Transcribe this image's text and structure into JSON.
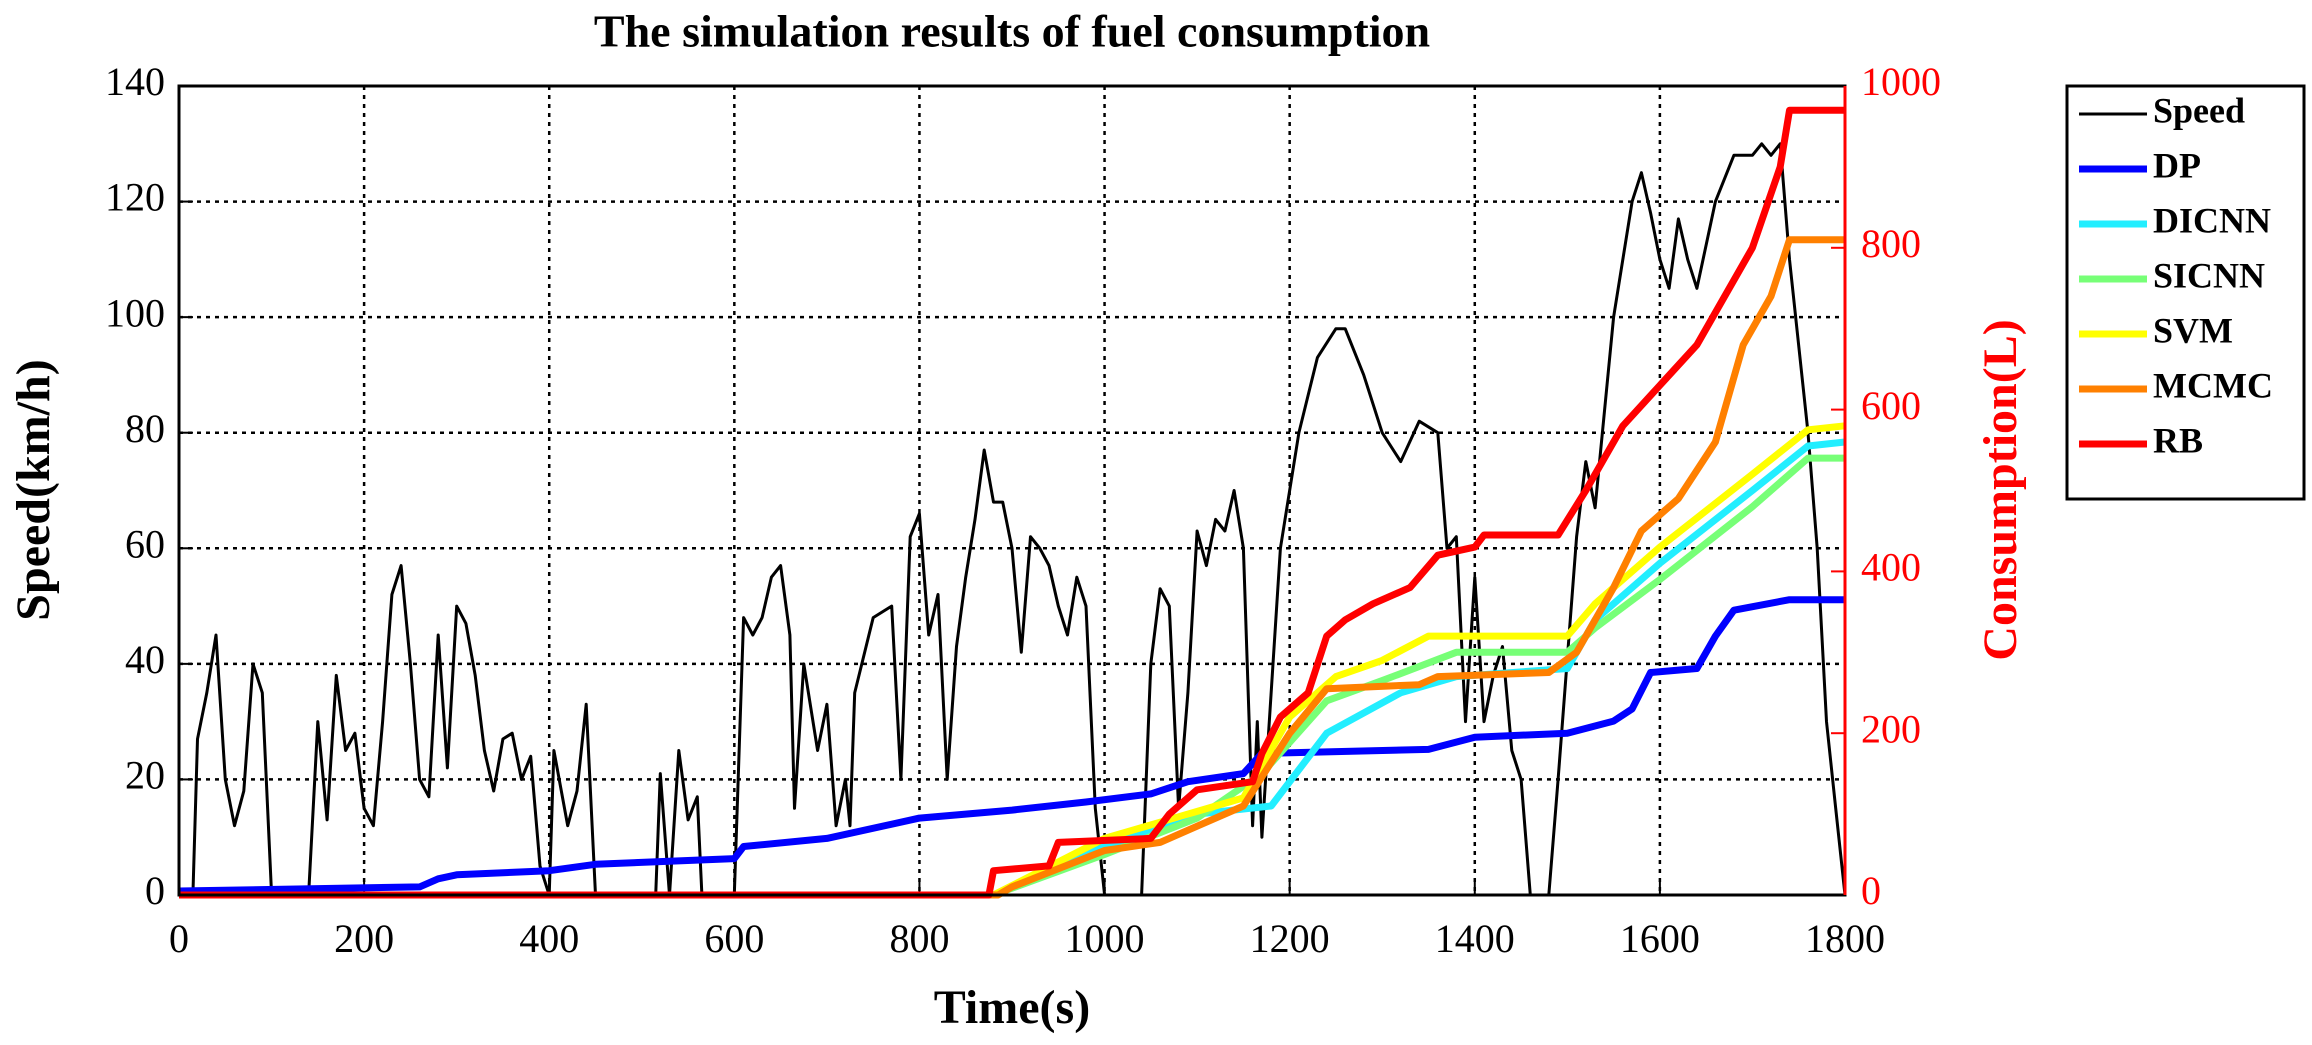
{
  "chart_data": {
    "type": "line",
    "title": "The simulation results of fuel consumption",
    "xlabel": "Time(s)",
    "ylabel": "Speed(km/h)",
    "y2label": "Consumption(L)",
    "y2color": "#ff0000",
    "xlim": [
      0,
      1800
    ],
    "xticks": [
      0,
      200,
      400,
      600,
      800,
      1000,
      1200,
      1400,
      1600,
      1800
    ],
    "ylim": [
      0,
      140
    ],
    "yticks": [
      0,
      20,
      40,
      60,
      80,
      100,
      120,
      140
    ],
    "y2lim": [
      0,
      1000
    ],
    "y2ticks": [
      0,
      200,
      400,
      600,
      800,
      1000
    ],
    "grid": true,
    "legend": "outside-right",
    "series": [
      {
        "name": "Speed",
        "color": "#000000",
        "width": 3,
        "axis": "y",
        "x": [
          0,
          15,
          20,
          30,
          40,
          50,
          60,
          70,
          80,
          90,
          100,
          140,
          150,
          160,
          170,
          180,
          190,
          200,
          210,
          220,
          230,
          240,
          250,
          260,
          270,
          280,
          290,
          300,
          310,
          320,
          330,
          340,
          350,
          360,
          370,
          380,
          390,
          400,
          405,
          420,
          430,
          440,
          450,
          515,
          520,
          530,
          540,
          550,
          560,
          565,
          600,
          610,
          620,
          630,
          640,
          650,
          660,
          665,
          675,
          690,
          700,
          710,
          720,
          725,
          730,
          750,
          770,
          780,
          790,
          800,
          810,
          820,
          830,
          840,
          850,
          860,
          870,
          880,
          890,
          900,
          910,
          920,
          930,
          940,
          950,
          960,
          970,
          980,
          990,
          1000,
          1040,
          1050,
          1060,
          1070,
          1080,
          1090,
          1100,
          1110,
          1120,
          1130,
          1140,
          1150,
          1160,
          1165,
          1170,
          1190,
          1210,
          1230,
          1250,
          1260,
          1280,
          1300,
          1320,
          1340,
          1360,
          1370,
          1380,
          1390,
          1400,
          1410,
          1420,
          1430,
          1440,
          1450,
          1460,
          1480,
          1490,
          1510,
          1520,
          1530,
          1550,
          1570,
          1580,
          1590,
          1600,
          1610,
          1620,
          1630,
          1640,
          1660,
          1680,
          1700,
          1710,
          1720,
          1730,
          1740,
          1760,
          1770,
          1780,
          1790,
          1800
        ],
        "values": [
          0,
          0,
          27,
          35,
          45,
          20,
          12,
          18,
          40,
          35,
          0,
          0,
          30,
          13,
          38,
          25,
          28,
          15,
          12,
          30,
          52,
          57,
          40,
          20,
          17,
          45,
          22,
          50,
          47,
          38,
          25,
          18,
          27,
          28,
          20,
          24,
          5,
          0,
          25,
          12,
          18,
          33,
          0,
          0,
          21,
          0,
          25,
          13,
          17,
          0,
          0,
          48,
          45,
          48,
          55,
          57,
          45,
          15,
          40,
          25,
          33,
          12,
          20,
          12,
          35,
          48,
          50,
          20,
          62,
          66,
          45,
          52,
          20,
          43,
          55,
          65,
          77,
          68,
          68,
          60,
          42,
          62,
          60,
          57,
          50,
          45,
          55,
          50,
          15,
          0,
          0,
          40,
          53,
          50,
          15,
          35,
          63,
          57,
          65,
          63,
          70,
          60,
          12,
          30,
          10,
          60,
          80,
          93,
          98,
          98,
          90,
          80,
          75,
          82,
          80,
          60,
          62,
          30,
          55,
          30,
          38,
          43,
          25,
          20,
          0,
          0,
          20,
          62,
          75,
          67,
          100,
          120,
          125,
          118,
          110,
          105,
          117,
          110,
          105,
          120,
          128,
          128,
          130,
          128,
          130,
          110,
          80,
          60,
          30,
          15,
          0
        ]
      },
      {
        "name": "DP",
        "color": "#0000ff",
        "width": 7,
        "axis": "y2",
        "x": [
          0,
          260,
          280,
          300,
          400,
          450,
          600,
          610,
          700,
          800,
          900,
          980,
          1050,
          1090,
          1150,
          1170,
          1350,
          1400,
          1500,
          1550,
          1570,
          1590,
          1640,
          1660,
          1680,
          1740,
          1800
        ],
        "values": [
          5,
          10,
          20,
          25,
          30,
          38,
          45,
          60,
          70,
          95,
          105,
          115,
          125,
          140,
          150,
          175,
          180,
          195,
          200,
          215,
          230,
          275,
          280,
          320,
          352,
          365,
          365
        ]
      },
      {
        "name": "DICNN",
        "color": "#22eeff",
        "width": 7,
        "axis": "y2",
        "x": [
          0,
          880,
          1000,
          1100,
          1180,
          1240,
          1320,
          1380,
          1500,
          1530,
          1600,
          1700,
          1760,
          1800
        ],
        "values": [
          0,
          0,
          60,
          100,
          110,
          200,
          250,
          270,
          280,
          340,
          410,
          500,
          555,
          560
        ]
      },
      {
        "name": "SICNN",
        "color": "#77ff77",
        "width": 7,
        "axis": "y2",
        "x": [
          0,
          880,
          1000,
          1100,
          1170,
          1240,
          1300,
          1380,
          1500,
          1530,
          1600,
          1700,
          1760,
          1800
        ],
        "values": [
          0,
          0,
          50,
          95,
          150,
          240,
          265,
          300,
          300,
          330,
          390,
          480,
          540,
          540
        ]
      },
      {
        "name": "SVM",
        "color": "#ffff00",
        "width": 7,
        "axis": "y2",
        "x": [
          0,
          880,
          1000,
          1060,
          1150,
          1200,
          1250,
          1300,
          1350,
          1500,
          1530,
          1600,
          1700,
          1760,
          1800
        ],
        "values": [
          0,
          0,
          70,
          90,
          120,
          220,
          270,
          290,
          320,
          320,
          360,
          430,
          520,
          575,
          580
        ]
      },
      {
        "name": "MCMC",
        "color": "#ff8000",
        "width": 7,
        "axis": "y2",
        "x": [
          0,
          885,
          900,
          1000,
          1060,
          1100,
          1150,
          1200,
          1240,
          1340,
          1360,
          1480,
          1510,
          1550,
          1580,
          1620,
          1660,
          1690,
          1720,
          1740,
          1800
        ],
        "values": [
          0,
          0,
          10,
          55,
          65,
          85,
          110,
          200,
          255,
          260,
          270,
          275,
          300,
          380,
          450,
          490,
          560,
          680,
          740,
          810,
          810
        ]
      },
      {
        "name": "RB",
        "color": "#ff0000",
        "width": 7,
        "axis": "y2",
        "x": [
          0,
          875,
          880,
          940,
          950,
          1050,
          1070,
          1100,
          1160,
          1170,
          1190,
          1220,
          1240,
          1260,
          1290,
          1330,
          1360,
          1400,
          1410,
          1490,
          1520,
          1560,
          1600,
          1640,
          1700,
          1730,
          1740,
          1800
        ],
        "values": [
          0,
          0,
          30,
          36,
          65,
          70,
          100,
          130,
          140,
          175,
          220,
          250,
          320,
          340,
          360,
          380,
          420,
          430,
          445,
          445,
          500,
          580,
          630,
          680,
          800,
          900,
          970,
          970
        ]
      }
    ]
  }
}
